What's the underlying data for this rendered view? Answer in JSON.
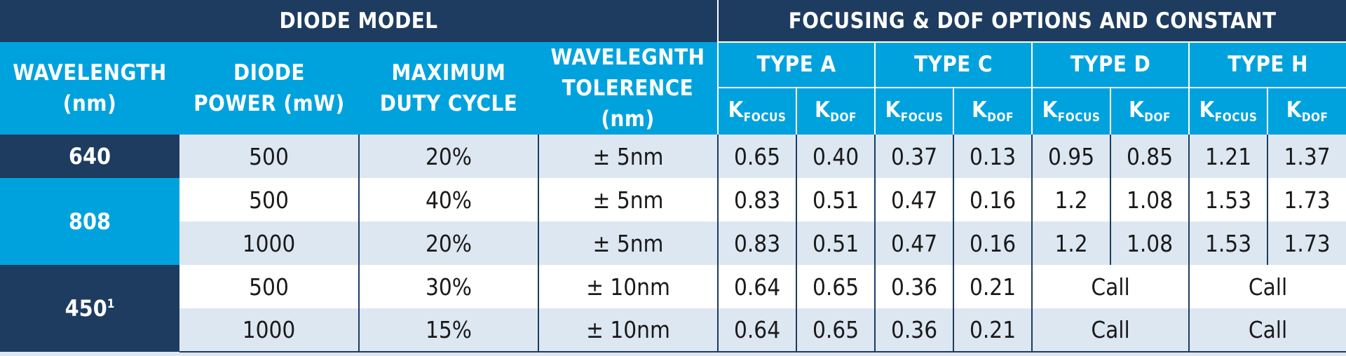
{
  "header": {
    "diode_model": "DIODE MODEL",
    "focusing": "FOCUSING & DOF OPTIONS AND CONSTANT",
    "wavelength": [
      "WAVELENGTH",
      "(nm)"
    ],
    "power": [
      "DIODE",
      "POWER (mW)"
    ],
    "duty": [
      "MAXIMUM",
      "DUTY CYCLE"
    ],
    "tolerance": [
      "WAVELEGNTH",
      "TOLERENCE (nm)"
    ],
    "types": [
      "TYPE A",
      "TYPE C",
      "TYPE D",
      "TYPE H"
    ],
    "k_letter": "K",
    "k_focus_sub": "FOCUS",
    "k_dof_sub": "DOF"
  },
  "rows": [
    {
      "power": "500",
      "duty": "20%",
      "tol": "± 5nm",
      "vals": [
        "0.65",
        "0.40",
        "0.37",
        "0.13",
        "0.95",
        "0.85",
        "1.21",
        "1.37"
      ]
    },
    {
      "power": "500",
      "duty": "40%",
      "tol": "± 5nm",
      "vals": [
        "0.83",
        "0.51",
        "0.47",
        "0.16",
        "1.2",
        "1.08",
        "1.53",
        "1.73"
      ]
    },
    {
      "power": "1000",
      "duty": "20%",
      "tol": "± 5nm",
      "vals": [
        "0.83",
        "0.51",
        "0.47",
        "0.16",
        "1.2",
        "1.08",
        "1.53",
        "1.73"
      ]
    },
    {
      "power": "500",
      "duty": "30%",
      "tol": "± 10nm",
      "vals": [
        "0.64",
        "0.65",
        "0.36",
        "0.21"
      ],
      "call": [
        "Call",
        "Call"
      ]
    },
    {
      "power": "1000",
      "duty": "15%",
      "tol": "± 10nm",
      "vals": [
        "0.64",
        "0.65",
        "0.36",
        "0.21"
      ],
      "call": [
        "Call",
        "Call"
      ]
    }
  ],
  "wavelengths": [
    {
      "value": "640",
      "sup": ""
    },
    {
      "value": "808",
      "sup": ""
    },
    {
      "value": "450",
      "sup": "1"
    }
  ]
}
